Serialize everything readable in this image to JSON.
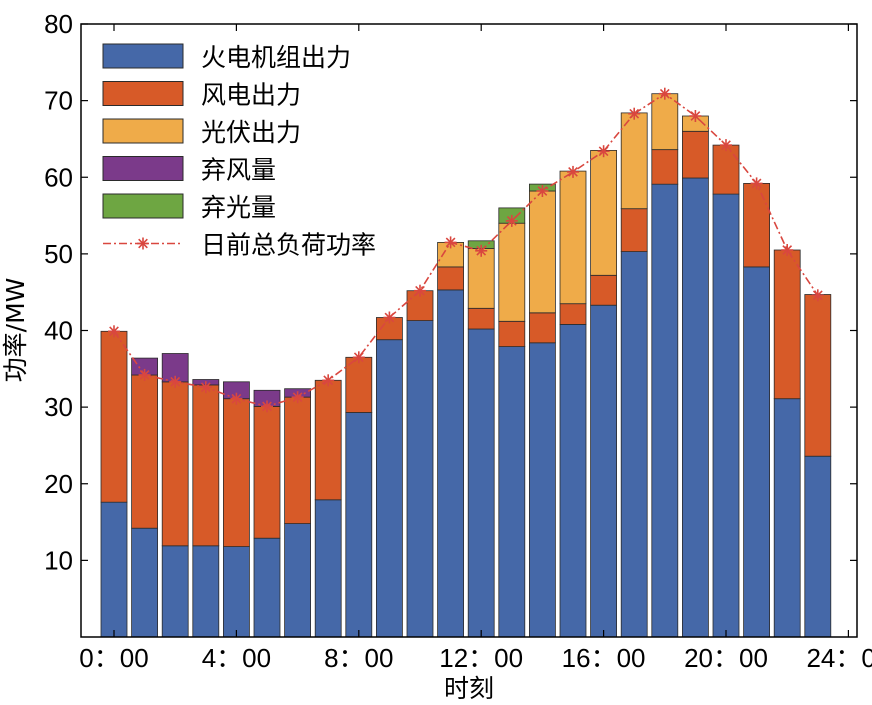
{
  "chart_data": {
    "type": "bar",
    "stacked": true,
    "title": "",
    "xlabel": "时刻",
    "ylabel": "功率/MW",
    "ylim": [
      0,
      80
    ],
    "yticks": [
      10,
      20,
      30,
      40,
      50,
      60,
      70,
      80
    ],
    "xlim": [
      0,
      24
    ],
    "xticks": [
      {
        "value": 0,
        "label": "0：00"
      },
      {
        "value": 4,
        "label": "4：00"
      },
      {
        "value": 8,
        "label": "8：00"
      },
      {
        "value": 12,
        "label": "12：00"
      },
      {
        "value": 16,
        "label": "16：00"
      },
      {
        "value": 20,
        "label": "20：00"
      },
      {
        "value": 24,
        "label": "24：00"
      }
    ],
    "x": [
      0,
      1,
      2,
      3,
      4,
      5,
      6,
      7,
      8,
      9,
      10,
      11,
      12,
      13,
      14,
      15,
      16,
      17,
      18,
      19,
      20,
      21,
      22,
      23,
      24
    ],
    "series": [
      {
        "name": "火电机组出力",
        "color": "#4568a8",
        "values": [
          17.6,
          14.2,
          11.9,
          11.9,
          11.8,
          12.9,
          14.8,
          17.9,
          29.3,
          38.8,
          41.3,
          45.3,
          40.2,
          37.9,
          38.4,
          40.8,
          43.3,
          50.3,
          59.1,
          59.9,
          57.8,
          48.3,
          31.1,
          23.6,
          0
        ]
      },
      {
        "name": "风电出力",
        "color": "#d75a28",
        "values": [
          22.3,
          20.0,
          21.4,
          21.0,
          19.3,
          17.2,
          16.5,
          15.6,
          7.2,
          2.9,
          3.9,
          3.0,
          2.7,
          3.3,
          3.9,
          2.7,
          3.9,
          5.6,
          4.5,
          6.1,
          6.4,
          10.9,
          19.4,
          21.1,
          0
        ]
      },
      {
        "name": "光伏出力",
        "color": "#efab49",
        "values": [
          0,
          0,
          0,
          0,
          0,
          0,
          0,
          0,
          0,
          0,
          0,
          3.2,
          7.8,
          12.8,
          15.9,
          17.3,
          16.3,
          12.5,
          7.3,
          2.0,
          0,
          0,
          0,
          0,
          0
        ]
      },
      {
        "name": "弃风量",
        "color": "#7b3a8a",
        "values": [
          0,
          2.2,
          3.7,
          0.7,
          2.2,
          2.1,
          1.1,
          0,
          0,
          0,
          0,
          0,
          0,
          0,
          0,
          0,
          0,
          0,
          0,
          0,
          0,
          0,
          0,
          0,
          0
        ]
      },
      {
        "name": "弃光量",
        "color": "#6ea642",
        "values": [
          0,
          0,
          0,
          0,
          0,
          0,
          0,
          0,
          0,
          0,
          0,
          0,
          1.0,
          2.0,
          0.9,
          0,
          0,
          0,
          0,
          0,
          0,
          0,
          0,
          0,
          0
        ]
      }
    ],
    "line": {
      "name": "日前总负荷功率",
      "color": "#d9473f",
      "values": [
        39.9,
        34.2,
        33.3,
        32.6,
        31.1,
        30.1,
        31.3,
        33.5,
        36.5,
        41.7,
        45.2,
        51.5,
        50.4,
        54.3,
        58.2,
        60.7,
        63.4,
        68.3,
        70.9,
        68.0,
        64.2,
        59.2,
        50.5,
        44.6
      ]
    },
    "legend": {
      "position": "top-left"
    },
    "grid": false
  }
}
